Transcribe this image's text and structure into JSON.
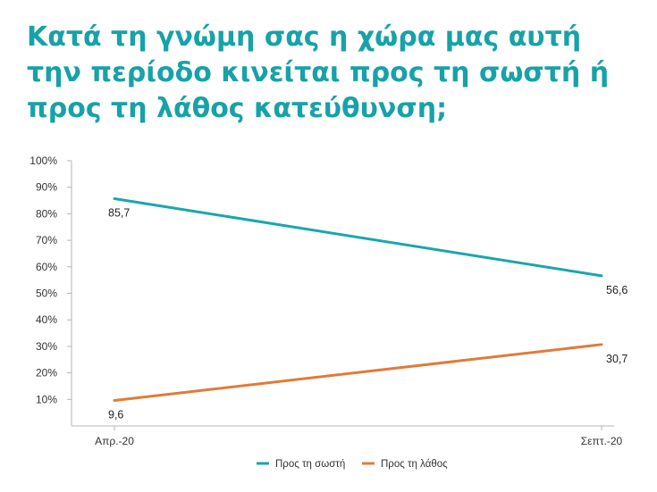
{
  "chart_data": {
    "type": "line",
    "title": "Κατά τη γνώμη σας η χώρα μας αυτή την περίοδο κινείται προς τη σωστή ή προς τη λάθος κατεύθυνση;",
    "categories": [
      "Απρ.-20",
      "Σεπτ.-20"
    ],
    "series": [
      {
        "name": "Προς τη σωστή",
        "color": "#1aa6ad",
        "values": [
          85.7,
          56.6
        ],
        "labels": [
          "85,7",
          "56,6"
        ]
      },
      {
        "name": "Προς τη λάθος",
        "color": "#e07b39",
        "values": [
          9.6,
          30.7
        ],
        "labels": [
          "9,6",
          "30,7"
        ]
      }
    ],
    "y_ticks": [
      "10%",
      "20%",
      "30%",
      "40%",
      "50%",
      "60%",
      "70%",
      "80%",
      "90%",
      "100%"
    ],
    "ylim": [
      0,
      100
    ],
    "legend_position": "bottom",
    "grid": false
  }
}
